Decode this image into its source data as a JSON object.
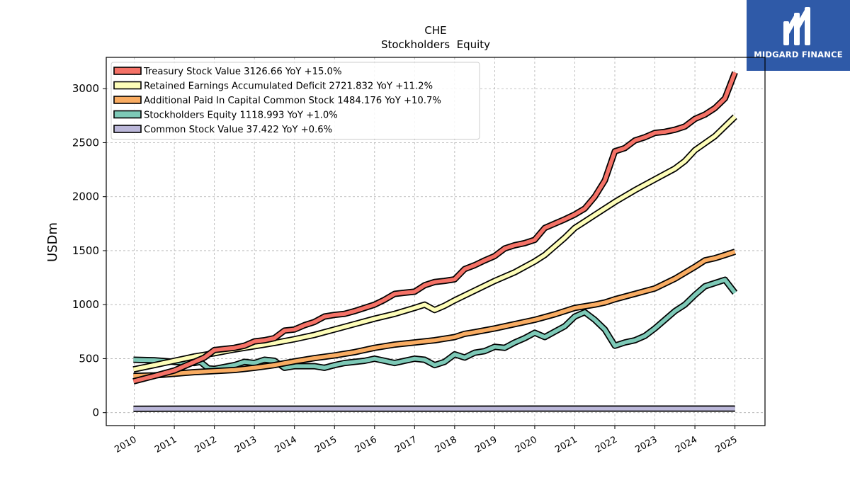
{
  "brand": {
    "name": "MIDGARD FINANCE",
    "color": "#2f5aa8"
  },
  "chart_data": {
    "type": "line",
    "title": "CHE",
    "subtitle": "Stockholders  Equity",
    "xlabel": "",
    "ylabel": "USDm",
    "xlim": [
      2009.3,
      2025.75
    ],
    "ylim": [
      -120,
      3290
    ],
    "x_ticks": [
      "2010",
      "2011",
      "2012",
      "2013",
      "2014",
      "2015",
      "2016",
      "2017",
      "2018",
      "2019",
      "2020",
      "2021",
      "2022",
      "2023",
      "2024",
      "2025"
    ],
    "y_ticks": [
      0,
      500,
      1000,
      1500,
      2000,
      2500,
      3000
    ],
    "y_tick_labels": [
      "0",
      "500",
      "1000",
      "1500",
      "2000",
      "2500",
      "3000"
    ],
    "grid": true,
    "legend_position": "top-left",
    "series": [
      {
        "name": "Treasury Stock Value",
        "legend": "Treasury Stock Value  3126.66 YoY +15.0%",
        "color": "#f57267",
        "points": [
          [
            2009.98,
            290
          ],
          [
            2010.5,
            340
          ],
          [
            2011.0,
            390
          ],
          [
            2011.5,
            470
          ],
          [
            2011.75,
            510
          ],
          [
            2012.0,
            580
          ],
          [
            2012.5,
            600
          ],
          [
            2012.75,
            620
          ],
          [
            2013.0,
            660
          ],
          [
            2013.25,
            670
          ],
          [
            2013.5,
            690
          ],
          [
            2013.75,
            760
          ],
          [
            2014.0,
            770
          ],
          [
            2014.25,
            810
          ],
          [
            2014.5,
            840
          ],
          [
            2014.75,
            890
          ],
          [
            2015.0,
            905
          ],
          [
            2015.25,
            915
          ],
          [
            2015.5,
            940
          ],
          [
            2015.75,
            970
          ],
          [
            2016.0,
            1000
          ],
          [
            2016.25,
            1045
          ],
          [
            2016.5,
            1100
          ],
          [
            2016.75,
            1110
          ],
          [
            2017.0,
            1120
          ],
          [
            2017.25,
            1180
          ],
          [
            2017.5,
            1210
          ],
          [
            2017.75,
            1220
          ],
          [
            2018.0,
            1235
          ],
          [
            2018.25,
            1330
          ],
          [
            2018.5,
            1365
          ],
          [
            2018.75,
            1410
          ],
          [
            2019.0,
            1450
          ],
          [
            2019.25,
            1520
          ],
          [
            2019.5,
            1550
          ],
          [
            2019.75,
            1570
          ],
          [
            2020.0,
            1600
          ],
          [
            2020.25,
            1710
          ],
          [
            2020.5,
            1750
          ],
          [
            2020.75,
            1790
          ],
          [
            2021.0,
            1835
          ],
          [
            2021.25,
            1890
          ],
          [
            2021.5,
            2000
          ],
          [
            2021.75,
            2150
          ],
          [
            2022.0,
            2420
          ],
          [
            2022.25,
            2450
          ],
          [
            2022.5,
            2520
          ],
          [
            2022.75,
            2550
          ],
          [
            2023.0,
            2590
          ],
          [
            2023.25,
            2600
          ],
          [
            2023.5,
            2620
          ],
          [
            2023.75,
            2650
          ],
          [
            2024.0,
            2720
          ],
          [
            2024.25,
            2760
          ],
          [
            2024.5,
            2820
          ],
          [
            2024.75,
            2910
          ],
          [
            2025.0,
            3150
          ]
        ]
      },
      {
        "name": "Retained Earnings Accumulated Deficit",
        "legend": "Retained Earnings Accumulated Deficit  2721.832 YoY +11.2%",
        "color": "#fdfdb8",
        "points": [
          [
            2009.98,
            400
          ],
          [
            2010.5,
            440
          ],
          [
            2011.0,
            480
          ],
          [
            2011.5,
            520
          ],
          [
            2012.0,
            550
          ],
          [
            2012.5,
            585
          ],
          [
            2013.0,
            615
          ],
          [
            2013.5,
            645
          ],
          [
            2014.0,
            680
          ],
          [
            2014.5,
            720
          ],
          [
            2015.0,
            770
          ],
          [
            2015.5,
            820
          ],
          [
            2016.0,
            870
          ],
          [
            2016.5,
            915
          ],
          [
            2017.0,
            970
          ],
          [
            2017.25,
            1000
          ],
          [
            2017.5,
            950
          ],
          [
            2017.75,
            990
          ],
          [
            2018.0,
            1040
          ],
          [
            2018.5,
            1130
          ],
          [
            2019.0,
            1220
          ],
          [
            2019.5,
            1300
          ],
          [
            2020.0,
            1400
          ],
          [
            2020.25,
            1460
          ],
          [
            2020.5,
            1540
          ],
          [
            2020.75,
            1620
          ],
          [
            2021.0,
            1710
          ],
          [
            2021.25,
            1770
          ],
          [
            2021.5,
            1830
          ],
          [
            2022.0,
            1950
          ],
          [
            2022.5,
            2060
          ],
          [
            2023.0,
            2160
          ],
          [
            2023.5,
            2260
          ],
          [
            2023.75,
            2330
          ],
          [
            2024.0,
            2430
          ],
          [
            2024.5,
            2560
          ],
          [
            2025.0,
            2740
          ]
        ]
      },
      {
        "name": "Additional Paid In Capital Common Stock",
        "legend": "Additional Paid In Capital Common Stock  1484.176 YoY +10.7%",
        "color": "#f9ac62",
        "points": [
          [
            2009.98,
            340
          ],
          [
            2010.5,
            345
          ],
          [
            2011.0,
            360
          ],
          [
            2011.5,
            375
          ],
          [
            2012.0,
            385
          ],
          [
            2012.5,
            395
          ],
          [
            2013.0,
            415
          ],
          [
            2013.5,
            440
          ],
          [
            2014.0,
            475
          ],
          [
            2014.5,
            505
          ],
          [
            2015.0,
            530
          ],
          [
            2015.5,
            560
          ],
          [
            2016.0,
            600
          ],
          [
            2016.5,
            630
          ],
          [
            2017.0,
            650
          ],
          [
            2017.5,
            670
          ],
          [
            2018.0,
            700
          ],
          [
            2018.25,
            730
          ],
          [
            2018.5,
            745
          ],
          [
            2019.0,
            780
          ],
          [
            2019.5,
            820
          ],
          [
            2020.0,
            860
          ],
          [
            2020.5,
            910
          ],
          [
            2021.0,
            970
          ],
          [
            2021.5,
            1000
          ],
          [
            2021.75,
            1020
          ],
          [
            2022.0,
            1050
          ],
          [
            2022.5,
            1100
          ],
          [
            2023.0,
            1150
          ],
          [
            2023.5,
            1240
          ],
          [
            2024.0,
            1350
          ],
          [
            2024.25,
            1410
          ],
          [
            2024.5,
            1430
          ],
          [
            2024.75,
            1460
          ],
          [
            2025.0,
            1490
          ]
        ]
      },
      {
        "name": "Stockholders Equity",
        "legend": "Stockholders Equity  1118.993 YoY +1.0%",
        "color": "#7dc9b7",
        "points": [
          [
            2009.98,
            490
          ],
          [
            2010.5,
            485
          ],
          [
            2011.0,
            470
          ],
          [
            2011.5,
            460
          ],
          [
            2011.65,
            470
          ],
          [
            2011.85,
            410
          ],
          [
            2012.0,
            405
          ],
          [
            2012.5,
            440
          ],
          [
            2012.75,
            470
          ],
          [
            2013.0,
            460
          ],
          [
            2013.25,
            490
          ],
          [
            2013.5,
            480
          ],
          [
            2013.75,
            415
          ],
          [
            2014.0,
            430
          ],
          [
            2014.5,
            430
          ],
          [
            2014.75,
            415
          ],
          [
            2015.0,
            440
          ],
          [
            2015.25,
            460
          ],
          [
            2015.5,
            470
          ],
          [
            2015.75,
            480
          ],
          [
            2016.0,
            500
          ],
          [
            2016.25,
            480
          ],
          [
            2016.5,
            460
          ],
          [
            2016.75,
            480
          ],
          [
            2017.0,
            500
          ],
          [
            2017.25,
            490
          ],
          [
            2017.5,
            440
          ],
          [
            2017.75,
            470
          ],
          [
            2018.0,
            540
          ],
          [
            2018.25,
            510
          ],
          [
            2018.5,
            555
          ],
          [
            2018.75,
            570
          ],
          [
            2019.0,
            610
          ],
          [
            2019.25,
            600
          ],
          [
            2019.5,
            650
          ],
          [
            2019.75,
            690
          ],
          [
            2020.0,
            740
          ],
          [
            2020.25,
            700
          ],
          [
            2020.5,
            750
          ],
          [
            2020.75,
            800
          ],
          [
            2021.0,
            890
          ],
          [
            2021.25,
            930
          ],
          [
            2021.5,
            860
          ],
          [
            2021.75,
            770
          ],
          [
            2022.0,
            620
          ],
          [
            2022.25,
            650
          ],
          [
            2022.5,
            670
          ],
          [
            2022.75,
            710
          ],
          [
            2023.0,
            780
          ],
          [
            2023.25,
            860
          ],
          [
            2023.5,
            940
          ],
          [
            2023.75,
            1000
          ],
          [
            2024.0,
            1090
          ],
          [
            2024.25,
            1170
          ],
          [
            2024.5,
            1200
          ],
          [
            2024.75,
            1230
          ],
          [
            2025.0,
            1110
          ]
        ]
      },
      {
        "name": "Common Stock Value",
        "legend": "Common Stock Value  37.422 YoY +0.6%",
        "color": "#bbb7d9",
        "points": [
          [
            2009.98,
            36
          ],
          [
            2012.0,
            36.5
          ],
          [
            2015.0,
            36.8
          ],
          [
            2018.0,
            37
          ],
          [
            2021.0,
            37.2
          ],
          [
            2024.0,
            37.3
          ],
          [
            2025.0,
            37.4
          ]
        ]
      }
    ]
  }
}
